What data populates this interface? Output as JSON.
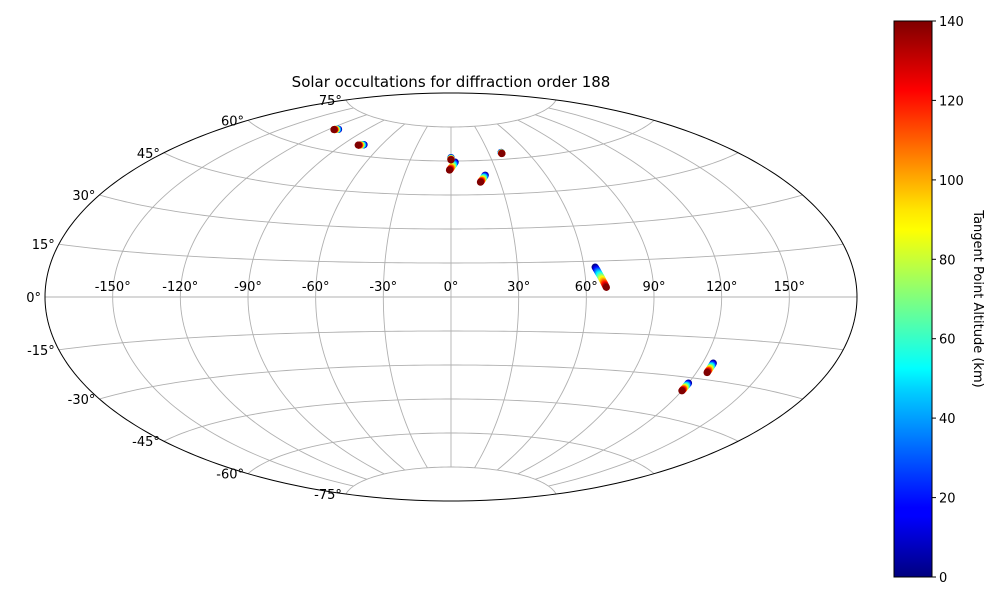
{
  "chart_data": {
    "type": "scatter",
    "projection": "aitoff",
    "title": "Solar occultations for diffraction order 188",
    "grid": true,
    "x_ticks": [
      "-150°",
      "-120°",
      "-90°",
      "-60°",
      "-30°",
      "0°",
      "30°",
      "60°",
      "90°",
      "120°",
      "150°"
    ],
    "x_tick_values": [
      -150,
      -120,
      -90,
      -60,
      -30,
      0,
      30,
      60,
      90,
      120,
      150
    ],
    "y_ticks": [
      "75°",
      "60°",
      "45°",
      "30°",
      "15°",
      "0°",
      "-15°",
      "-30°",
      "-45°",
      "-60°",
      "-75°"
    ],
    "y_tick_values": [
      75,
      60,
      45,
      30,
      15,
      0,
      -15,
      -30,
      -45,
      -60,
      -75
    ],
    "colorbar": {
      "label": "Tangent Point Altitude (km)",
      "range": [
        0,
        140
      ],
      "ticks": [
        "0",
        "20",
        "40",
        "60",
        "80",
        "100",
        "120",
        "140"
      ],
      "tick_values": [
        0,
        20,
        40,
        60,
        80,
        100,
        120,
        140
      ],
      "colormap": "jet"
    },
    "occultations": [
      {
        "lon_start": -113,
        "lat_start": 68.0,
        "lon_end": -116,
        "lat_end": 67.5
      },
      {
        "lon_start": -74,
        "lat_start": 64.5,
        "lon_end": -78,
        "lat_end": 64.0
      },
      {
        "lon_start": 3,
        "lat_start": 59.5,
        "lon_end": -1,
        "lat_end": 56.0
      },
      {
        "lon_start": 22,
        "lat_start": 53.5,
        "lon_end": 18,
        "lat_end": 50.5
      },
      {
        "lon_start": 0,
        "lat_start": 61.5,
        "lon_end": 0,
        "lat_end": 60.5
      },
      {
        "lon_start": 40,
        "lat_start": 63.0,
        "lon_end": 40,
        "lat_end": 62.5
      },
      {
        "lon_start": 65,
        "lat_start": 12.5,
        "lon_end": 69,
        "lat_end": 4.0
      },
      {
        "lon_start": 125,
        "lat_start": -24.0,
        "lon_end": 125,
        "lat_end": -27.5
      },
      {
        "lon_start": 120,
        "lat_start": -32.0,
        "lon_end": 120,
        "lat_end": -35.0
      }
    ]
  }
}
